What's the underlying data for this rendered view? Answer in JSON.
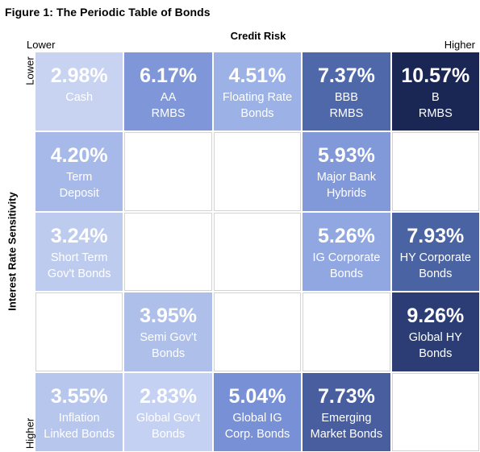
{
  "figure_title": "Figure 1: The Periodic Table of Bonds",
  "chart_data": {
    "type": "table",
    "title": "Figure 1: The Periodic Table of Bonds",
    "xlabel": "Credit Risk",
    "ylabel": "Interest Rate Sensitivity",
    "x_low": "Lower",
    "x_high": "Higher",
    "y_low": "Lower",
    "y_high": "Higher",
    "rows": [
      [
        {
          "value": "2.98%",
          "label": [
            "Cash"
          ],
          "color": "#c7d3f1"
        },
        {
          "value": "6.17%",
          "label": [
            "AA",
            "RMBS"
          ],
          "color": "#7f97d8"
        },
        {
          "value": "4.51%",
          "label": [
            "Floating Rate",
            "Bonds"
          ],
          "color": "#9cb1e6"
        },
        {
          "value": "7.37%",
          "label": [
            "BBB",
            "RMBS"
          ],
          "color": "#4e68a9"
        },
        {
          "value": "10.57%",
          "label": [
            "B",
            "RMBS"
          ],
          "color": "#1a2654"
        }
      ],
      [
        {
          "value": "4.20%",
          "label": [
            "Term",
            "Deposit"
          ],
          "color": "#a7b9e8"
        },
        null,
        null,
        {
          "value": "5.93%",
          "label": [
            "Major Bank",
            "Hybrids"
          ],
          "color": "#8199d9"
        },
        null
      ],
      [
        {
          "value": "3.24%",
          "label": [
            "Short Term",
            "Gov't Bonds"
          ],
          "color": "#bdcbef"
        },
        null,
        null,
        {
          "value": "5.26%",
          "label": [
            "IG Corporate",
            "Bonds"
          ],
          "color": "#91a7e2"
        },
        {
          "value": "7.93%",
          "label": [
            "HY Corporate",
            "Bonds"
          ],
          "color": "#4a63a3"
        }
      ],
      [
        null,
        {
          "value": "3.95%",
          "label": [
            "Semi Gov't",
            "Bonds"
          ],
          "color": "#aebfea"
        },
        null,
        null,
        {
          "value": "9.26%",
          "label": [
            "Global HY",
            "Bonds"
          ],
          "color": "#2b3d74"
        }
      ],
      [
        {
          "value": "3.55%",
          "label": [
            "Inflation",
            "Linked Bonds"
          ],
          "color": "#b7c6ed"
        },
        {
          "value": "2.83%",
          "label": [
            "Global Gov't",
            "Bonds"
          ],
          "color": "#c5d1f2"
        },
        {
          "value": "5.04%",
          "label": [
            "Global IG",
            "Corp. Bonds"
          ],
          "color": "#7890d5"
        },
        {
          "value": "7.73%",
          "label": [
            "Emerging",
            "Market Bonds"
          ],
          "color": "#485e9f"
        },
        null
      ]
    ]
  }
}
